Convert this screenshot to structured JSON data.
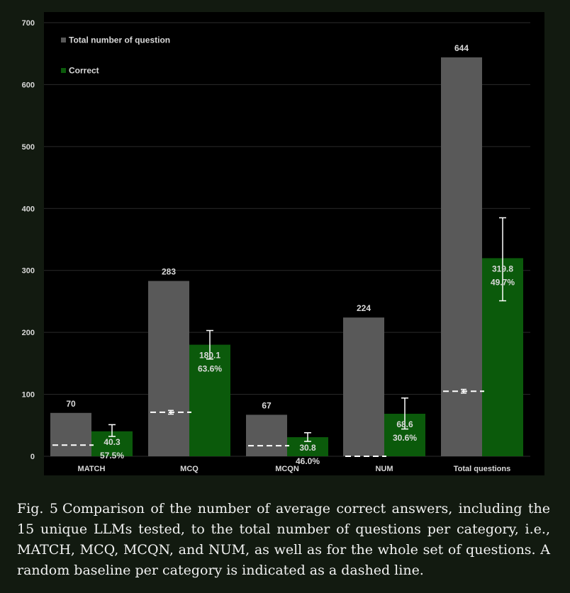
{
  "chart_data": {
    "type": "bar",
    "categories": [
      "MATCH",
      "MCQ",
      "MCQN",
      "NUM",
      "Total questions"
    ],
    "series": [
      {
        "name": "Total number of question",
        "values": [
          70,
          283,
          67,
          224,
          644
        ],
        "labels": [
          "70",
          "283",
          "67",
          "224",
          "644"
        ],
        "color": "#595959"
      },
      {
        "name": "Correct",
        "values": [
          40.3,
          180.1,
          30.8,
          68.6,
          319.8
        ],
        "labels": [
          "40.3",
          "180.1",
          "30.8",
          "68.6",
          "319.8"
        ],
        "percent_labels": [
          "57.5%",
          "63.6%",
          "46.0%",
          "30.6%",
          "49.7%"
        ],
        "error_low": [
          32,
          157,
          24,
          44,
          251
        ],
        "error_high": [
          51,
          203,
          38,
          94,
          385
        ],
        "color": "#0b5a0b"
      }
    ],
    "random_baseline": {
      "style": "dashed",
      "values": [
        18,
        71,
        17,
        0,
        105
      ],
      "error_low": [
        null,
        68,
        null,
        null,
        102
      ],
      "error_high": [
        null,
        74,
        null,
        null,
        108
      ]
    },
    "title": "",
    "xlabel": "",
    "ylabel": "",
    "ylim": [
      0,
      700
    ],
    "yticks": [
      0,
      100,
      200,
      300,
      400,
      500,
      600,
      700
    ],
    "grid": true,
    "legend_position": "top-left"
  },
  "caption": {
    "label": "Fig.  5",
    "text": "Comparison of the number of average correct answers, including the 15 unique LLMs tested, to the total number of questions per category, i.e., MATCH, MCQ, MCQN, and NUM, as well as for the whole set of questions.  A random baseline per category is indicated as a dashed line."
  },
  "colors": {
    "background": "#121a10",
    "plot_background": "#000000",
    "gridline": "#2b2b2b",
    "text": "#d9d9d9",
    "baseline": "#ffffff"
  }
}
